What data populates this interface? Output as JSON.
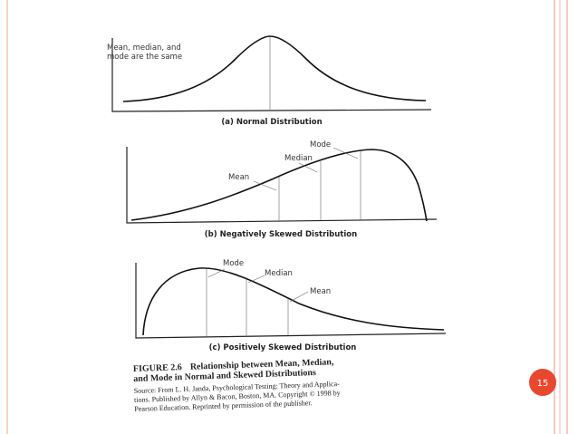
{
  "figure": {
    "panels": [
      {
        "notes": [
          "Mean, median, and",
          "mode are the same"
        ],
        "caption": "(a) Normal Distribution"
      },
      {
        "labels": [
          "Mean",
          "Median",
          "Mode"
        ],
        "caption": "(b) Negatively Skewed Distribution"
      },
      {
        "labels": [
          "Mode",
          "Median",
          "Mean"
        ],
        "caption": "(c) Positively Skewed Distribution"
      }
    ],
    "figure_label": "FIGURE 2.6",
    "title_lines": [
      "Relationship between Mean, Median,",
      "and Mode in Normal and Skewed Distributions"
    ],
    "source_lines": [
      "Source: From L. H. Janda, Psychological Testing: Theory and Applica-",
      "tions. Published by Allyn & Bacon, Boston, MA. Copyright © 1998 by",
      "Pearson Education. Reprinted by permission of the publisher."
    ]
  },
  "slide": {
    "page_number": "15"
  }
}
